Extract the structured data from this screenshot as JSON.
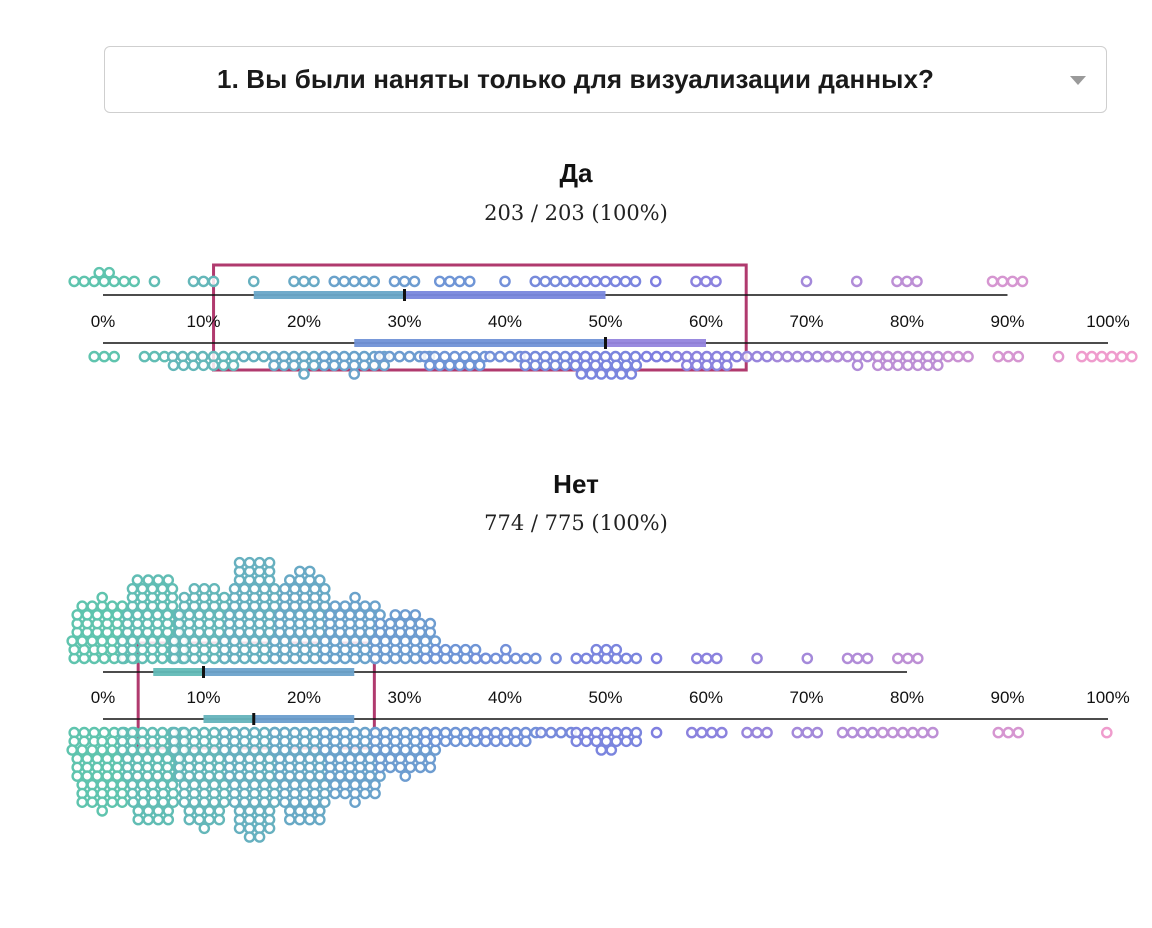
{
  "question_select": {
    "label": "1. Вы были наняты только для визуализации данных?",
    "icon": "chevron-down-icon"
  },
  "colors": {
    "gradient_start": "#5fc4ae",
    "gradient_mid": "#6f95d6",
    "gradient_mid2": "#7f7fe0",
    "gradient_end": "#ef9ccd",
    "highlight_box": "#b03a6e",
    "axis": "#111111"
  },
  "chart_data": {
    "type": "scatter",
    "subtype": "beeswarm with interquartile bars",
    "x_range": [
      0,
      100
    ],
    "x_unit": "%",
    "groups": [
      {
        "name": "Да",
        "count_label": "203 / 203 (100%)",
        "tick_labels": [
          "0%",
          "10%",
          "20%",
          "30%",
          "40%",
          "50%",
          "60%",
          "70%",
          "80%",
          "90%",
          "100%"
        ],
        "upper_swarm": {
          "axis_max": 90,
          "values": [
            0,
            5,
            10,
            15,
            20,
            25,
            30,
            35,
            40,
            45,
            50,
            55,
            60,
            65,
            70,
            75,
            80,
            85,
            90
          ],
          "counts": [
            9,
            1,
            3,
            1,
            3,
            5,
            3,
            4,
            1,
            5,
            7,
            1,
            3,
            0,
            1,
            1,
            3,
            0,
            4
          ],
          "box": {
            "q1": 15,
            "median": 30,
            "q3": 50
          }
        },
        "lower_swarm": {
          "axis_max": 100,
          "values": [
            0,
            5,
            10,
            15,
            20,
            25,
            30,
            35,
            40,
            45,
            50,
            55,
            60,
            65,
            70,
            75,
            80,
            85,
            90,
            95,
            100
          ],
          "counts": [
            3,
            3,
            14,
            3,
            15,
            15,
            6,
            13,
            4,
            14,
            20,
            3,
            12,
            3,
            7,
            8,
            14,
            3,
            3,
            1,
            6
          ],
          "box": {
            "q1": 25,
            "median": 50,
            "q3": 60
          }
        },
        "highlight_range": [
          11,
          64
        ]
      },
      {
        "name": "Нет",
        "count_label": "774 / 775 (100%)",
        "tick_labels": [
          "0%",
          "10%",
          "20%",
          "30%",
          "40%",
          "50%",
          "60%",
          "70%",
          "80%",
          "90%",
          "100%"
        ],
        "upper_swarm": {
          "axis_max": 80,
          "values": [
            0,
            5,
            10,
            15,
            20,
            25,
            30,
            35,
            40,
            45,
            50,
            55,
            60,
            65,
            70,
            75,
            80
          ],
          "counts": [
            45,
            58,
            52,
            66,
            60,
            45,
            36,
            12,
            8,
            1,
            10,
            1,
            3,
            1,
            1,
            3,
            3
          ],
          "box": {
            "q1": 5,
            "median": 10,
            "q3": 25
          }
        },
        "lower_swarm": {
          "axis_max": 100,
          "values": [
            0,
            5,
            10,
            15,
            20,
            25,
            30,
            35,
            40,
            45,
            50,
            55,
            60,
            65,
            70,
            75,
            80,
            90,
            100
          ],
          "counts": [
            55,
            62,
            63,
            68,
            62,
            50,
            34,
            14,
            12,
            4,
            16,
            1,
            4,
            3,
            3,
            4,
            6,
            3,
            1
          ],
          "box": {
            "q1": 10,
            "median": 15,
            "q3": 25
          }
        },
        "highlight_range": [
          3.5,
          27
        ]
      }
    ]
  }
}
